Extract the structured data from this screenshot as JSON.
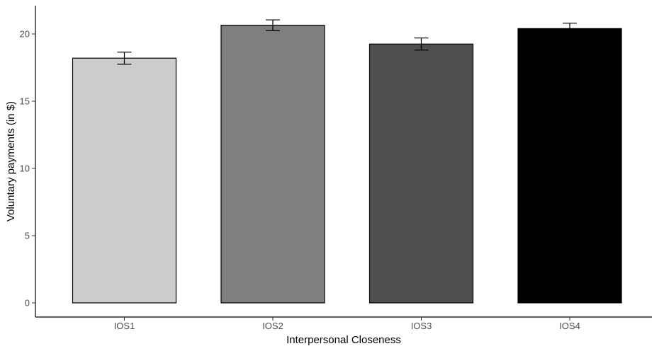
{
  "chart_data": {
    "type": "bar",
    "title": "",
    "xlabel": "Interpersonal Closeness",
    "ylabel": "Voluntary payments (in $)",
    "categories": [
      "IOS1",
      "IOS2",
      "IOS3",
      "IOS4"
    ],
    "values": [
      18.2,
      20.65,
      19.25,
      20.4
    ],
    "error_low": [
      17.75,
      20.25,
      18.8,
      20.0
    ],
    "error_high": [
      18.65,
      21.05,
      19.7,
      20.8
    ],
    "bar_colors": [
      "#cccccc",
      "#7f7f7f",
      "#4f4f4f",
      "#000000"
    ],
    "ylim": [
      0,
      22
    ],
    "yticks": [
      0,
      5,
      10,
      15,
      20
    ],
    "grid": false,
    "legend": "none"
  }
}
